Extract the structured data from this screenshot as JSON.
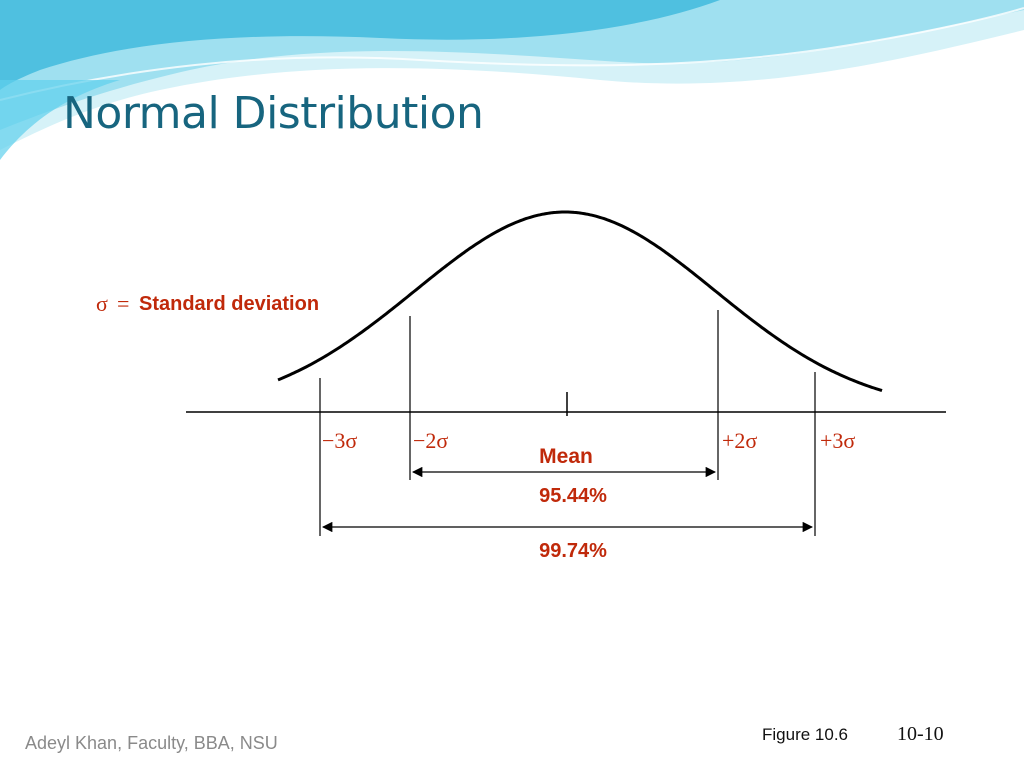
{
  "slide": {
    "title": "Normal Distribution",
    "footer_left": "Adeyl Khan, Faculty, BBA, NSU",
    "figure_label": "Figure 10.6",
    "slide_number": "10-10"
  },
  "diagram": {
    "legend_sigma": "σ",
    "legend_equals": "=",
    "legend_text": "Standard deviation",
    "markers": [
      {
        "sign": "−",
        "num": "3",
        "sym": "σ"
      },
      {
        "sign": "−",
        "num": "2",
        "sym": "σ"
      },
      {
        "sign": "+",
        "num": "2",
        "sym": "σ"
      },
      {
        "sign": "+",
        "num": "3",
        "sym": "σ"
      }
    ],
    "mean_label": "Mean",
    "range_2sigma": "95.44%",
    "range_3sigma": "99.74%"
  },
  "colors": {
    "title": "#17657f",
    "accent_red": "#c0290a",
    "wave_light": "#bfeaf3",
    "wave_mid": "#7fd3ea",
    "wave_dark": "#37b3d8"
  }
}
